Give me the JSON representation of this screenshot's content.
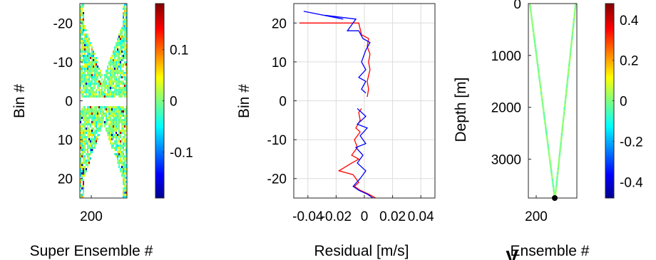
{
  "chart_data": [
    {
      "type": "heatmap",
      "xlabel": "Super Ensemble #",
      "ylabel": "Bin #",
      "x_ticks": [
        "200"
      ],
      "y_ticks": [
        "-20",
        "-10",
        "0",
        "10",
        "20"
      ],
      "ylim": [
        -25,
        25
      ],
      "y_reversed": true,
      "colorbar": {
        "ticks": [
          "0.1",
          "0",
          "-0.1"
        ],
        "range": [
          -0.19,
          0.19
        ],
        "colormap": "jet"
      }
    },
    {
      "type": "line",
      "xlabel": "Residual [m/s]",
      "ylabel": "Bin #",
      "x_ticks": [
        "-0.04",
        "-0.02",
        "0",
        "0.02",
        "0.04"
      ],
      "y_ticks": [
        "20",
        "10",
        "0",
        "-10",
        "-20"
      ],
      "xlim": [
        -0.05,
        0.05
      ],
      "ylim": [
        -25,
        25
      ],
      "grid": true,
      "series": [
        {
          "color": "#ff0000",
          "points": [
            [
              -0.046,
              20
            ],
            [
              -0.004,
              20
            ],
            [
              -0.002,
              17
            ],
            [
              0.003,
              16
            ],
            [
              0.002,
              14
            ],
            [
              0.004,
              12
            ],
            [
              0.003,
              10
            ],
            [
              0.004,
              8
            ],
            [
              0.002,
              5
            ],
            [
              0.003,
              3
            ],
            [
              0.002,
              1
            ],
            [
              -0.002,
              -2
            ],
            [
              -0.004,
              -3
            ],
            [
              -0.003,
              -5
            ],
            [
              -0.006,
              -7
            ],
            [
              -0.003,
              -8
            ],
            [
              -0.007,
              -10
            ],
            [
              -0.005,
              -12
            ],
            [
              -0.009,
              -14
            ],
            [
              -0.004,
              -15
            ],
            [
              -0.009,
              -16
            ],
            [
              -0.018,
              -18
            ],
            [
              -0.008,
              -19
            ],
            [
              -0.004,
              -21
            ],
            [
              -0.007,
              -22
            ],
            [
              -0.003,
              -23
            ],
            [
              0.003,
              -24
            ],
            [
              0.008,
              -25
            ]
          ]
        },
        {
          "color": "#0000ff",
          "points": [
            [
              -0.043,
              23
            ],
            [
              -0.015,
              21
            ],
            [
              -0.028,
              22
            ],
            [
              -0.006,
              21
            ],
            [
              -0.012,
              18
            ],
            [
              -0.004,
              18
            ],
            [
              -0.001,
              16
            ],
            [
              0.004,
              15
            ],
            [
              0.001,
              13
            ],
            [
              -0.002,
              10
            ],
            [
              0.001,
              8
            ],
            [
              -0.004,
              6
            ],
            [
              0.001,
              5
            ],
            [
              -0.002,
              3
            ],
            [
              0.001,
              2
            ],
            [
              -0.005,
              -2
            ],
            [
              0.001,
              -4
            ],
            [
              -0.005,
              -6
            ],
            [
              0.002,
              -7
            ],
            [
              -0.003,
              -9
            ],
            [
              0.001,
              -11
            ],
            [
              -0.006,
              -12
            ],
            [
              -0.001,
              -14
            ],
            [
              -0.005,
              -16
            ],
            [
              0.001,
              -18
            ],
            [
              -0.003,
              -20
            ],
            [
              -0.008,
              -22
            ],
            [
              -0.004,
              -23
            ],
            [
              0.002,
              -24
            ],
            [
              0.006,
              -25
            ]
          ]
        }
      ]
    },
    {
      "type": "heatmap",
      "xlabel": "Ensemble #",
      "ylabel": "Depth [m]",
      "x_ticks": [
        "200"
      ],
      "y_ticks": [
        "0",
        "1000",
        "2000",
        "3000"
      ],
      "ylim": [
        0,
        3750
      ],
      "y_reversed": true,
      "colorbar": {
        "ticks": [
          "0.4",
          "0.2",
          "0",
          "-0.2",
          "-0.4"
        ],
        "range": [
          -0.48,
          0.48
        ],
        "colormap": "jet"
      }
    }
  ],
  "figure_overlay_text": "V"
}
